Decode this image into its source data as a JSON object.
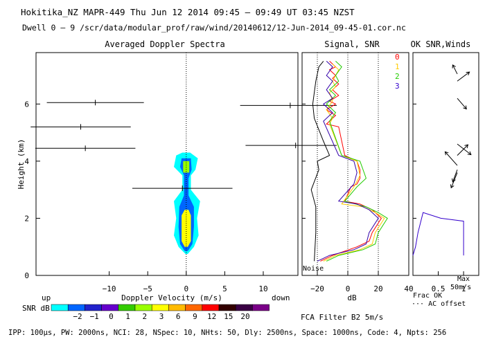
{
  "header": {
    "line1": "Hokitika_NZ  MAPR-449  Thu Jun 12 2014 09:45 – 09:49 UT 03:45 NZST",
    "line2": "Dwell  0 –  9   /scr/data/modular_prof/raw/wind/20140612/12-Jun-2014_09-45-01.cor.nc"
  },
  "footer": "IPP: 100μs,  PW: 2000ns,  NCI:  28,  NSpec: 10, NHts: 50,  Dly: 2500ns,  Space: 1000ns,  Code: 4,  Npts: 256",
  "colorbar": {
    "label_up": "up",
    "label_down": "down",
    "label_snr": "SNR dB",
    "colors": [
      "#00ffff",
      "#0066ff",
      "#2222cc",
      "#6600cc",
      "#33cc00",
      "#99ff00",
      "#ffff00",
      "#ffbb00",
      "#ff6600",
      "#ff0000",
      "#330000",
      "#3a0044",
      "#7a0088"
    ],
    "ticks": [
      "−2",
      "−1",
      "0",
      "1",
      "2",
      "3",
      "6",
      "9",
      "12",
      "15",
      "20"
    ]
  },
  "chart_data": [
    {
      "type": "contour",
      "title": "Averaged Doppler Spectra",
      "xlabel": "Doppler Velocity (m/s)",
      "ylabel": "Height (km)",
      "xlim": [
        -19.5,
        14.5
      ],
      "ylim": [
        0,
        7.8
      ],
      "xticks": [
        -10,
        -5,
        0,
        5,
        10
      ],
      "yticks": [
        0,
        2,
        4,
        6
      ],
      "zero_line_x": 0,
      "spectra_levels": [
        {
          "name": "cyan",
          "color": "#00ffff",
          "outline": [
            [
              -0.1,
              0.75
            ],
            [
              -1.0,
              1.0
            ],
            [
              -1.6,
              1.4
            ],
            [
              -1.3,
              2.0
            ],
            [
              -1.6,
              2.6
            ],
            [
              -0.5,
              3.0
            ],
            [
              -0.5,
              3.5
            ],
            [
              -1.6,
              3.8
            ],
            [
              -1.3,
              4.2
            ],
            [
              -0.5,
              4.3
            ],
            [
              0.5,
              4.3
            ],
            [
              1.5,
              4.1
            ],
            [
              1.2,
              3.7
            ],
            [
              0.6,
              3.5
            ],
            [
              0.6,
              3.0
            ],
            [
              1.8,
              2.6
            ],
            [
              1.4,
              2.0
            ],
            [
              1.6,
              1.4
            ],
            [
              1.0,
              1.0
            ],
            [
              0.2,
              0.75
            ]
          ]
        },
        {
          "name": "blue",
          "color": "#0066ff",
          "outline": [
            [
              -0.2,
              0.85
            ],
            [
              -0.8,
              1.1
            ],
            [
              -1.0,
              1.7
            ],
            [
              -0.9,
              2.4
            ],
            [
              -0.3,
              2.8
            ],
            [
              -0.3,
              3.5
            ],
            [
              -0.8,
              3.8
            ],
            [
              -0.6,
              4.1
            ],
            [
              0.6,
              4.1
            ],
            [
              0.7,
              3.7
            ],
            [
              0.3,
              3.4
            ],
            [
              0.3,
              2.8
            ],
            [
              1.0,
              2.4
            ],
            [
              1.0,
              1.7
            ],
            [
              0.8,
              1.1
            ],
            [
              0.2,
              0.85
            ]
          ]
        },
        {
          "name": "yellow",
          "color": "#ffff00",
          "outline": [
            [
              -0.2,
              1.0
            ],
            [
              -0.6,
              1.2
            ],
            [
              -0.6,
              2.1
            ],
            [
              -0.2,
              2.3
            ],
            [
              0.3,
              2.3
            ],
            [
              0.6,
              2.1
            ],
            [
              0.6,
              1.2
            ],
            [
              0.2,
              1.0
            ]
          ]
        },
        {
          "name": "green",
          "color": "#99ff00",
          "outline": [
            [
              -0.4,
              3.6
            ],
            [
              -0.4,
              4.0
            ],
            [
              0.4,
              4.0
            ],
            [
              0.4,
              3.6
            ]
          ]
        }
      ],
      "wind_bars": [
        {
          "height": 6.05,
          "center": -11.8,
          "half_width": 6.3
        },
        {
          "height": 5.2,
          "center": -13.7,
          "half_width": 6.5
        },
        {
          "height": 4.45,
          "center": -13.1,
          "half_width": 6.5
        },
        {
          "height": 3.05,
          "center": -0.5,
          "half_width": 6.5
        },
        {
          "height": 5.95,
          "center": 13.5,
          "half_width": 6.5
        },
        {
          "height": 4.55,
          "center": 14.2,
          "half_width": 6.5
        }
      ]
    },
    {
      "type": "line",
      "title": "Signal, SNR",
      "xlabel": "dB",
      "xlim": [
        -30,
        40
      ],
      "ylim": [
        0,
        7.8
      ],
      "xticks": [
        -20,
        0,
        20,
        40
      ],
      "dotted_refs": [
        -20,
        0,
        20
      ],
      "annotation": "Noise",
      "series": [
        {
          "name": "noise",
          "color": "#000000",
          "points": [
            [
              -22,
              0.5
            ],
            [
              -21,
              1.5
            ],
            [
              -21,
              2.4
            ],
            [
              -24,
              3.0
            ],
            [
              -19,
              3.7
            ],
            [
              -20,
              4.0
            ],
            [
              -12,
              4.2
            ],
            [
              -16,
              4.7
            ],
            [
              -22,
              5.5
            ],
            [
              -23,
              6.0
            ],
            [
              -21,
              6.8
            ],
            [
              -19,
              7.3
            ],
            [
              -16,
              7.5
            ]
          ]
        },
        {
          "name": "signal-red",
          "color": "#ff0000",
          "points": [
            [
              -12,
              7.5
            ],
            [
              -8,
              7.3
            ],
            [
              -12,
              7.2
            ],
            [
              -8,
              7.0
            ],
            [
              -10,
              6.9
            ],
            [
              -6,
              6.7
            ],
            [
              -10,
              6.5
            ],
            [
              -6,
              6.3
            ],
            [
              -12,
              6.1
            ],
            [
              -8,
              6.0
            ],
            [
              -14,
              5.8
            ],
            [
              -8,
              5.6
            ],
            [
              -14,
              5.3
            ],
            [
              -6,
              5.2
            ],
            [
              -2,
              4.2
            ],
            [
              6,
              4.0
            ],
            [
              8,
              3.7
            ],
            [
              8,
              3.4
            ],
            [
              6,
              3.2
            ],
            [
              2,
              3.1
            ],
            [
              -2,
              2.6
            ],
            [
              8,
              2.5
            ],
            [
              16,
              2.3
            ],
            [
              22,
              2.0
            ],
            [
              16,
              1.5
            ],
            [
              14,
              1.2
            ],
            [
              6,
              1.0
            ],
            [
              -10,
              0.7
            ],
            [
              -18,
              0.5
            ]
          ]
        },
        {
          "name": "signal-yellow",
          "color": "#ffcc00",
          "points": [
            [
              -10,
              7.4
            ],
            [
              -6,
              7.2
            ],
            [
              -10,
              6.8
            ],
            [
              -8,
              6.6
            ],
            [
              -12,
              6.4
            ],
            [
              -10,
              6.1
            ],
            [
              -14,
              5.8
            ],
            [
              -10,
              5.5
            ],
            [
              -12,
              5.3
            ],
            [
              -4,
              4.2
            ],
            [
              6,
              4.0
            ],
            [
              8,
              3.5
            ],
            [
              4,
              3.1
            ],
            [
              -4,
              2.5
            ],
            [
              10,
              2.4
            ],
            [
              18,
              2.2
            ],
            [
              24,
              2.0
            ],
            [
              18,
              1.5
            ],
            [
              16,
              1.1
            ],
            [
              8,
              0.9
            ],
            [
              -8,
              0.7
            ],
            [
              -16,
              0.5
            ]
          ]
        },
        {
          "name": "signal-green",
          "color": "#22cc00",
          "points": [
            [
              -8,
              7.5
            ],
            [
              -4,
              7.3
            ],
            [
              -8,
              7.0
            ],
            [
              -6,
              6.8
            ],
            [
              -12,
              6.5
            ],
            [
              -8,
              6.3
            ],
            [
              -14,
              6.0
            ],
            [
              -8,
              5.7
            ],
            [
              -12,
              5.4
            ],
            [
              -4,
              4.2
            ],
            [
              8,
              4.0
            ],
            [
              12,
              3.4
            ],
            [
              6,
              3.1
            ],
            [
              -2,
              2.6
            ],
            [
              12,
              2.4
            ],
            [
              20,
              2.2
            ],
            [
              26,
              2.0
            ],
            [
              20,
              1.5
            ],
            [
              18,
              1.1
            ],
            [
              10,
              0.9
            ],
            [
              -6,
              0.7
            ],
            [
              -14,
              0.5
            ]
          ]
        },
        {
          "name": "signal-purple",
          "color": "#3300aa",
          "points": [
            [
              -14,
              7.5
            ],
            [
              -10,
              7.3
            ],
            [
              -14,
              7.0
            ],
            [
              -10,
              6.8
            ],
            [
              -14,
              6.5
            ],
            [
              -10,
              6.2
            ],
            [
              -16,
              6.0
            ],
            [
              -10,
              5.7
            ],
            [
              -16,
              5.4
            ],
            [
              -6,
              4.2
            ],
            [
              4,
              4.0
            ],
            [
              6,
              3.6
            ],
            [
              4,
              3.2
            ],
            [
              -6,
              2.6
            ],
            [
              6,
              2.5
            ],
            [
              14,
              2.3
            ],
            [
              20,
              2.0
            ],
            [
              14,
              1.5
            ],
            [
              12,
              1.1
            ],
            [
              4,
              0.9
            ],
            [
              -12,
              0.7
            ],
            [
              -20,
              0.5
            ]
          ]
        }
      ]
    },
    {
      "type": "vector",
      "title": "OK SNR,Winds",
      "legend_numbers": [
        "0",
        "1",
        "2",
        "3"
      ],
      "legend_colors": [
        "#ff0000",
        "#ffcc00",
        "#22cc00",
        "#3300cc"
      ],
      "xlim": [
        0,
        1.3
      ],
      "xticks": [
        "0.5",
        "1"
      ],
      "xlabel_lines": [
        "Frac OK",
        "··· AC offset"
      ],
      "max_label": [
        "Max",
        "50m/s"
      ],
      "frac_ok_points": [
        [
          0.0,
          0.7
        ],
        [
          0.05,
          1.0
        ],
        [
          0.1,
          1.5
        ],
        [
          0.2,
          2.2
        ],
        [
          0.55,
          2.0
        ],
        [
          1.0,
          1.9
        ],
        [
          1.0,
          0.7
        ]
      ],
      "wind_vectors": [
        {
          "height": 7.05,
          "u": -3,
          "v": 6
        },
        {
          "height": 6.8,
          "u": 8,
          "v": 6
        },
        {
          "height": 6.2,
          "u": 6,
          "v": -7
        },
        {
          "height": 4.6,
          "u": 9,
          "v": -7
        },
        {
          "height": 4.2,
          "u": 7,
          "v": 7
        },
        {
          "height": 3.85,
          "u": -8,
          "v": 9
        },
        {
          "height": 3.7,
          "u": -3,
          "v": -8
        },
        {
          "height": 3.6,
          "u": -4,
          "v": -10
        }
      ]
    }
  ],
  "right_bottom": "FCA Filter B2  5m/s"
}
